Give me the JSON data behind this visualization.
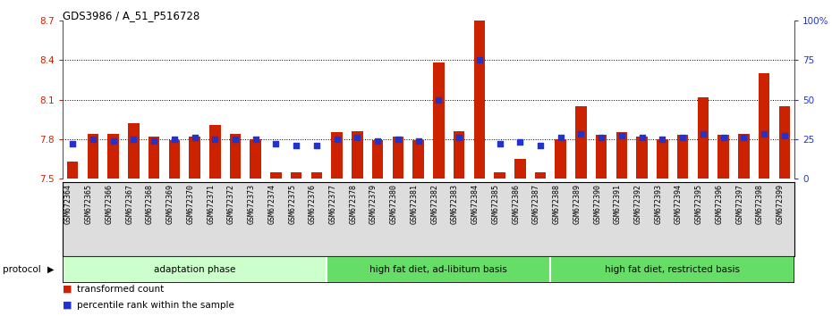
{
  "title": "GDS3986 / A_51_P516728",
  "samples": [
    "GSM672364",
    "GSM672365",
    "GSM672366",
    "GSM672367",
    "GSM672368",
    "GSM672369",
    "GSM672370",
    "GSM672371",
    "GSM672372",
    "GSM672373",
    "GSM672374",
    "GSM672375",
    "GSM672376",
    "GSM672377",
    "GSM672378",
    "GSM672379",
    "GSM672380",
    "GSM672381",
    "GSM672382",
    "GSM672383",
    "GSM672384",
    "GSM672385",
    "GSM672386",
    "GSM672387",
    "GSM672388",
    "GSM672389",
    "GSM672390",
    "GSM672391",
    "GSM672392",
    "GSM672393",
    "GSM672394",
    "GSM672395",
    "GSM672396",
    "GSM672397",
    "GSM672398",
    "GSM672399"
  ],
  "bar_values": [
    7.63,
    7.84,
    7.84,
    7.92,
    7.82,
    7.79,
    7.82,
    7.91,
    7.84,
    7.8,
    7.55,
    7.55,
    7.55,
    7.85,
    7.86,
    7.79,
    7.82,
    7.79,
    8.38,
    7.86,
    8.7,
    7.55,
    7.65,
    7.55,
    7.8,
    8.05,
    7.83,
    7.85,
    7.82,
    7.8,
    7.83,
    8.12,
    7.83,
    7.84,
    8.3,
    8.05
  ],
  "percentile_values": [
    22,
    25,
    24,
    25,
    24,
    25,
    26,
    25,
    25,
    25,
    22,
    21,
    21,
    25,
    26,
    24,
    25,
    24,
    50,
    26,
    75,
    22,
    23,
    21,
    26,
    28,
    26,
    27,
    26,
    25,
    26,
    28,
    26,
    26,
    28,
    27
  ],
  "groups": [
    {
      "label": "adaptation phase",
      "start": 0,
      "end": 13,
      "color": "#ccffcc"
    },
    {
      "label": "high fat diet, ad-libitum basis",
      "start": 13,
      "end": 24,
      "color": "#66dd66"
    },
    {
      "label": "high fat diet, restricted basis",
      "start": 24,
      "end": 36,
      "color": "#66dd66"
    }
  ],
  "ylim": [
    7.5,
    8.7
  ],
  "yticks": [
    7.5,
    7.8,
    8.1,
    8.4,
    8.7
  ],
  "ytick_labels": [
    "7.5",
    "7.8",
    "8.1",
    "8.4",
    "8.7"
  ],
  "right_yticks": [
    0,
    25,
    50,
    75,
    100
  ],
  "right_ytick_labels": [
    "0",
    "25",
    "50",
    "75",
    "100%"
  ],
  "bar_color": "#cc2200",
  "dot_color": "#2233cc",
  "bar_bottom": 7.5,
  "grid_values": [
    7.8,
    8.1,
    8.4
  ],
  "protocol_label": "protocol"
}
